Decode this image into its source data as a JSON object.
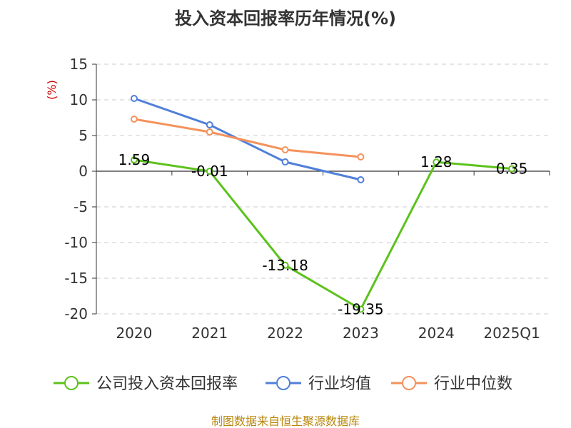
{
  "chart_data": {
    "type": "line",
    "title": "投入资本回报率历年情况(%)",
    "ylabel": "(%)",
    "xlabel": "",
    "ylim": [
      -20,
      15
    ],
    "yticks": [
      15,
      10,
      5,
      0,
      -5,
      -10,
      -15,
      -20
    ],
    "grid": true,
    "categories": [
      "2020",
      "2021",
      "2022",
      "2023",
      "2024",
      "2025Q1"
    ],
    "series": [
      {
        "name": "公司投入资本回报率",
        "color": "#5cc21c",
        "values": [
          1.59,
          -0.01,
          -13.18,
          -19.35,
          1.28,
          0.35
        ],
        "labels": [
          "1.59",
          "-0.01",
          "-13.18",
          "-19.35",
          "1.28",
          "0.35"
        ]
      },
      {
        "name": "行业均值",
        "color": "#4f7fd9",
        "values": [
          10.2,
          6.5,
          1.3,
          -1.2,
          null,
          null
        ]
      },
      {
        "name": "行业中位数",
        "color": "#f4925c",
        "values": [
          7.3,
          5.5,
          3.0,
          2.0,
          null,
          null
        ]
      }
    ],
    "legend_position": "bottom",
    "source": "制图数据来自恒生聚源数据库"
  }
}
